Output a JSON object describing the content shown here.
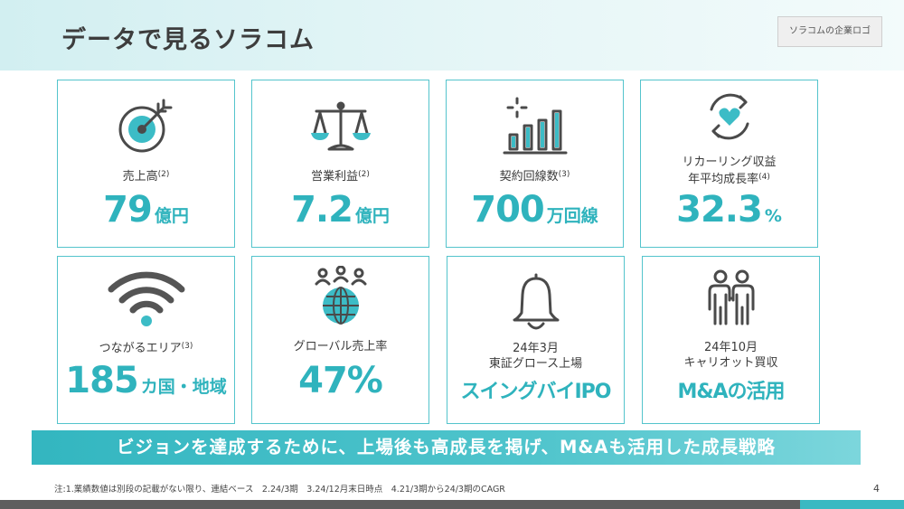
{
  "header": {
    "title": "データで見るソラコム",
    "logo_placeholder": "ソラコムの企業ロゴ"
  },
  "cards": [
    {
      "icon": "target-icon",
      "label": "売上高",
      "note": "(2)",
      "value": "79",
      "unit": "億円"
    },
    {
      "icon": "scale-icon",
      "label": "営業利益",
      "note": "(2)",
      "value": "7.2",
      "unit": "億円"
    },
    {
      "icon": "bar-chart-icon",
      "label": "契約回線数",
      "note": "(3)",
      "value": "700",
      "unit": "万回線"
    },
    {
      "icon": "recurring-heart-icon",
      "label_line1": "リカーリング収益",
      "label_line2": "年平均成長率",
      "note": "(4)",
      "value": "32.3",
      "unit": "%"
    },
    {
      "icon": "wifi-icon",
      "label": "つながるエリア",
      "note": "(3)",
      "value": "185",
      "unit": "カ国・地域"
    },
    {
      "icon": "globe-people-icon",
      "label": "グローバル売上率",
      "value": "47%"
    },
    {
      "icon": "bell-icon",
      "label_line1": "24年3月",
      "label_line2": "東証グロース上場",
      "value": "スイングバイIPO"
    },
    {
      "icon": "people-icon",
      "label_line1": "24年10月",
      "label_line2": "キャリオット買収",
      "value": "M&Aの活用"
    }
  ],
  "banner": "ビジョンを達成するために、上場後も高成長を掲げ、M&Aも活用した成長戦略",
  "footnote": "注:1.業績数値は別段の記載がない限り、連結ベース　2.24/3期　3.24/12月末日時点　4.21/3期から24/3期のCAGR",
  "page_number": "4",
  "colors": {
    "accent": "#3cbcc6",
    "text": "#3a3a3a",
    "bar": "#5e5e5e"
  }
}
